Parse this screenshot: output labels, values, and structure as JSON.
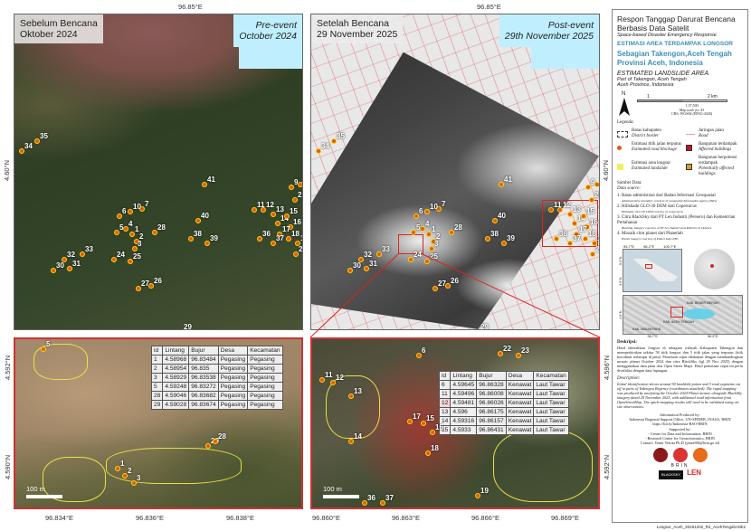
{
  "maps": {
    "pre": {
      "title_id": "Sebelum Bencana",
      "date_id": "Oktober 2024",
      "title_en": "Pre-event",
      "date_en": "October 2024",
      "top_coord": "96.85°E",
      "left_coord": "4.60°N"
    },
    "post": {
      "title_id": "Setelah Bencana",
      "date_id": "29 November 2025",
      "title_en": "Post-event",
      "date_en": "29th November 2025",
      "top_coord": "96.85°E",
      "left_coord": "4.60°N"
    },
    "points": [
      "1",
      "2",
      "3",
      "4",
      "5",
      "6",
      "7",
      "8",
      "9",
      "10",
      "11",
      "12",
      "13",
      "14",
      "15",
      "16",
      "17",
      "18",
      "19",
      "20",
      "21",
      "22",
      "23",
      "24",
      "25",
      "26",
      "27",
      "28",
      "29",
      "30",
      "31",
      "32",
      "33",
      "34",
      "35",
      "36",
      "37",
      "38",
      "39",
      "40",
      "41"
    ]
  },
  "zoom_left": {
    "coords_x": [
      "96.834°E",
      "96.836°E",
      "96.838°E"
    ],
    "coords_y": [
      "4.592°N",
      "4.590°N"
    ],
    "scale": "100 m",
    "table": {
      "headers": [
        "id",
        "Lintang",
        "Bujur",
        "Desa",
        "Kecamatan"
      ],
      "rows": [
        [
          "1",
          "4.58968",
          "96.83484",
          "Pegasing",
          "Pegasing"
        ],
        [
          "2",
          "4.58954",
          "96.835",
          "Pegasing",
          "Pegasing"
        ],
        [
          "3",
          "4.58929",
          "96.83538",
          "Pegasing",
          "Pegasing"
        ],
        [
          "5",
          "4.59248",
          "96.83272",
          "Pegasing",
          "Pegasing"
        ],
        [
          "28",
          "4.59046",
          "96.83682",
          "Pegasing",
          "Pegasing"
        ],
        [
          "29",
          "4.59028",
          "96.83674",
          "Pegasing",
          "Pegasing"
        ]
      ]
    },
    "points": [
      "5",
      "29",
      "28",
      "1",
      "2",
      "3"
    ]
  },
  "zoom_right": {
    "coords_x": [
      "96.860°E",
      "96.863°E",
      "96.866°E",
      "96.869°E"
    ],
    "coords_y": [
      "4.596°N",
      "4.592°N"
    ],
    "scale": "100 m",
    "table": {
      "headers": [
        "id",
        "Lintang",
        "Bujur",
        "Desa",
        "Kecamatan"
      ],
      "rows": [
        [
          "6",
          "4.59645",
          "96.86328",
          "Kenawat",
          "Laut Tawar"
        ],
        [
          "11",
          "4.59496",
          "96.86008",
          "Kenawat",
          "Laut Tawar"
        ],
        [
          "12",
          "4.59481",
          "96.86026",
          "Kenawat",
          "Laut Tawar"
        ],
        [
          "13",
          "4.596",
          "96.86175",
          "Kenawat",
          "Laut Tawar"
        ],
        [
          "14",
          "4.59316",
          "96.86157",
          "Kenawat",
          "Laut Tawar"
        ],
        [
          "15",
          "4.5933",
          "96.86431",
          "Kenawat",
          "Laut Tawar"
        ]
      ]
    },
    "points": [
      "11",
      "12",
      "6",
      "22",
      "23",
      "13",
      "14",
      "17",
      "15",
      "16",
      "18",
      "19",
      "36",
      "37"
    ]
  },
  "side": {
    "title": "Respon Tanggap Darurat Bencana Berbasis Data Satelit",
    "subtitle": "Space-based Disaster Emergency Response",
    "heading_id": "ESTIMASI AREA TERDAMPAK LONGSOR",
    "location_id": "Sebagian Takengon,Aceh Tengah Provinsi Aceh, Indonesia",
    "heading_en": "ESTIMATED LANDSLIDE AREA",
    "location_en": "Part of Takengon, Aceh Tengah\nAceh Province, Indonesia",
    "north": "N",
    "scale_1": "1",
    "scale_2": "2 km",
    "scale_ratio": "1:37,500",
    "scale_note": "Map scale for A3",
    "crs": "CRS: WGS84 (EPSG:4326)",
    "legend_title": "Legenda:",
    "legend": [
      {
        "id": "Batas kabupaten",
        "en": "District border",
        "color": "#ffffff"
      },
      {
        "id": "Jaringan jalan",
        "en": "Road",
        "color": "#e8a0a0"
      },
      {
        "id": "Estimasi titik jalan terputus",
        "en": "Estimated road blockage",
        "color": "#e25b1a"
      },
      {
        "id": "Bangunan terdampak",
        "en": "Affected buildings",
        "color": "#c0141c"
      },
      {
        "id": "Estimasi area longsor",
        "en": "Estimated landslide",
        "color": "#f4f060"
      },
      {
        "id": "Bangunan berpotensi terdampak",
        "en": "Potentially affected buildings",
        "color": "#e09a2a"
      }
    ],
    "sources_title": "Sumber Data:",
    "sources_title_en": "Data source:",
    "sources": [
      {
        "id": "1. Batas administrasi dari Badan Informasi Geospasial",
        "en": "Administrative boundary courtesy of Geospatial Information Agency (BIG)"
      },
      {
        "id": "2. Hillshade GLO-30 DEM dari Copernicus",
        "en": "Hillshade GLO-30 DEM courtesy of Copernicus"
      },
      {
        "id": "3. Citra BlackSky dari PT Len Industri (Persero) dan Kementrian Pertahanan",
        "en": "BlackSky Imagery courtesy of PT Len Industri and Ministry of Defence"
      },
      {
        "id": "4. Mozaik citra planet dari Planetlab",
        "en": "Planet imagery courtesy of Planet Labs PBC"
      }
    ],
    "inset": {
      "x_top": [
        "95.7°E",
        "98.2°E",
        "100.7°E"
      ],
      "y_left": [
        "5.0°N",
        "3.0°N"
      ],
      "x_bottom": [
        "96.7°E",
        "96.9°E"
      ],
      "y_bottom": "4.6°N",
      "labels": [
        "KAB. BENER MERIAH",
        "KAB. ACEH TENGAH",
        "KAB. NAGAN RAYA"
      ]
    },
    "desc_title": "Deskripsi:",
    "desc": "Hasil identifikasi longsor di sebagian wilayah Kabupaten Takengon dan memperkirakan sekitar 50 titik longsor dan 5 titik jalan yang terputus (titik koordinat terlampir di peta). Pemetaan cepat dilakukan dengan membandingkan mosaic planet October 2024 dan citra BlackSky (tgl 29 Nov 2025) dengan menggunakan data jalan dari Open Street Maps. Hasil pemetaan cepat ini perlu divalidasi dengan data lapangan.",
    "desc_title_en": "Description:",
    "desc_en": "Initial identification shows around 50 landslide points and 5 road segments cut off in parts of Takengon Regency (coordinates attached). The rapid mapping was produced by analyzing the October 2024 Planet mosaic alongside BlackSky imagery dated 29 November 2025, with additional road information from OpenStreetMap. The quick-mapping results still need to be validated using on-site observations.",
    "credits": [
      "Information Produced by:",
      "Indonesia Regional Support Office, UN-SPIDER, INASA, BRIN",
      "https://bit.ly/Indonesia-RSO-BRIN",
      "Supported by:",
      "- Center for Data and Information, BRIN",
      "- Research Center for Geoinformatics, BRIN",
      "Contact: Yenni Vetrita Ph.D (yenn006@brin.go.id)"
    ],
    "logos": [
      "BRIN",
      "BLACKSKY",
      "LEN"
    ]
  },
  "footer": "Longsor_Aceh_20251202_R2_AcehTengahA0E2"
}
